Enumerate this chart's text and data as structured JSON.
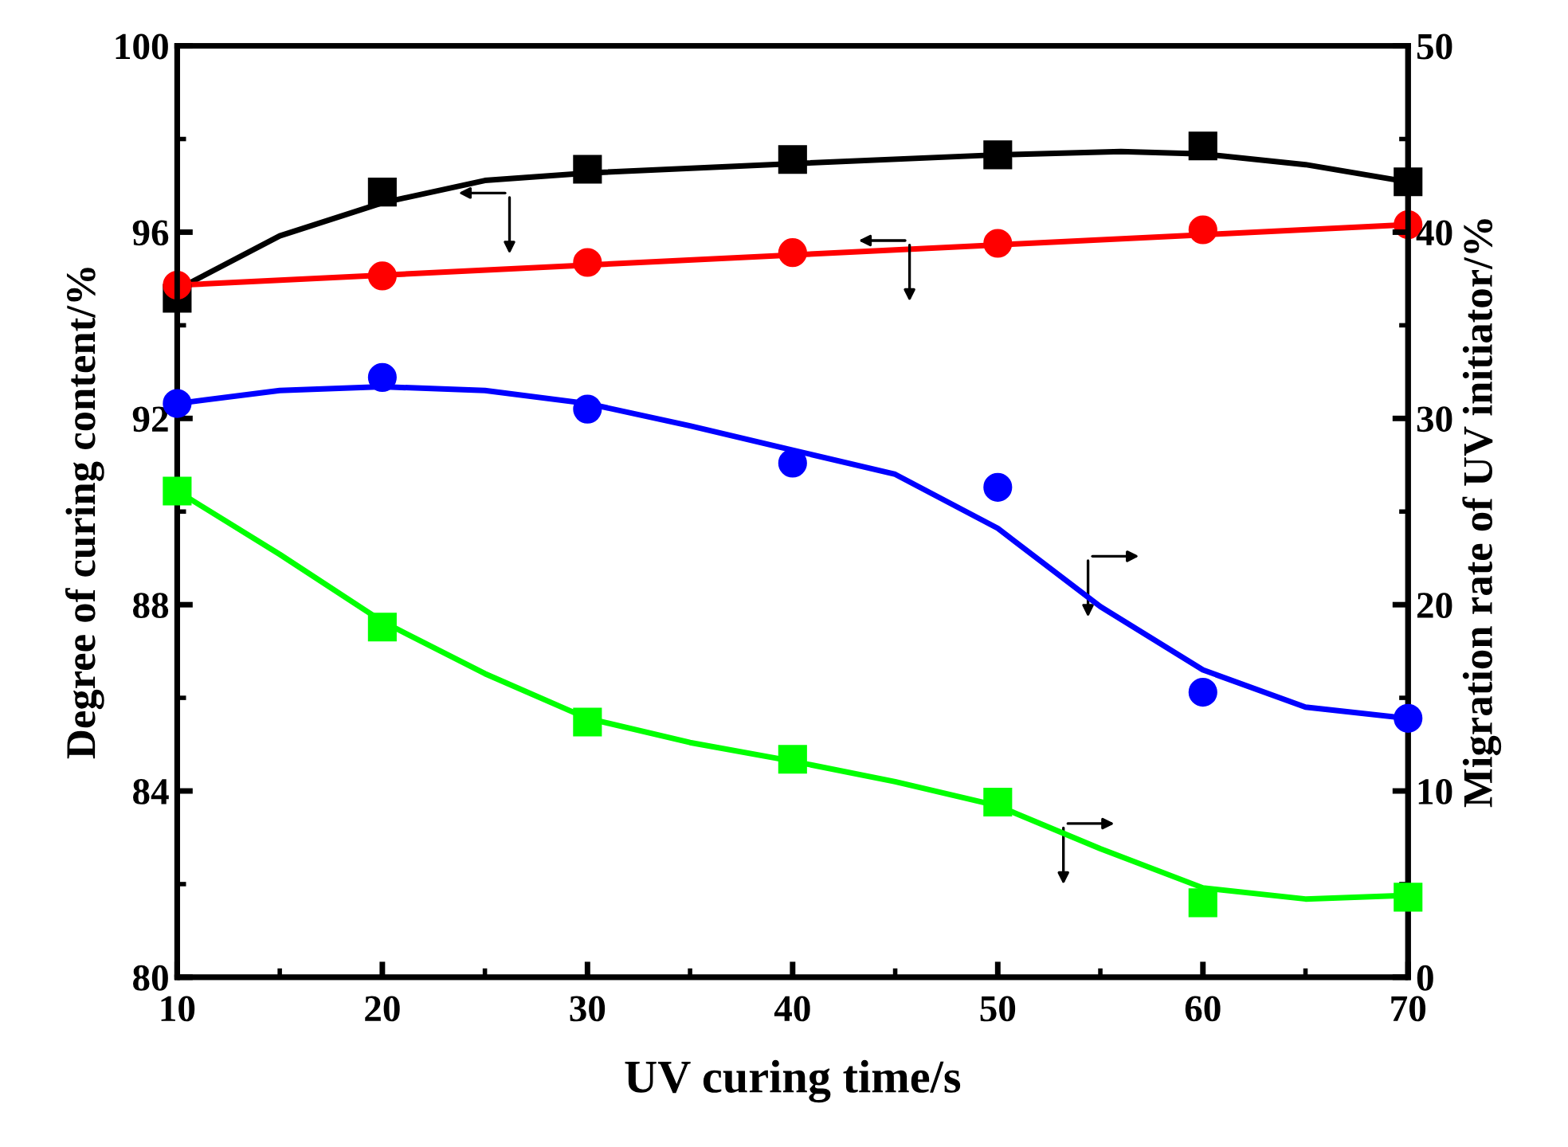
{
  "chart_data": {
    "type": "line",
    "xlabel": "UV curing time/s",
    "ylabel": "Degree of curing content/%",
    "y2label": "Migration rate of UV initiator/%",
    "x": [
      10,
      20,
      30,
      40,
      50,
      60,
      70
    ],
    "series": [
      {
        "type": "scatter",
        "color": "#000000",
        "marker": "square",
        "values": [
          94.58,
          96.86,
          97.35,
          97.56,
          97.66,
          97.85,
          97.08
        ]
      },
      {
        "type": "scatter",
        "color": "#ff0000",
        "marker": "circle",
        "values": [
          94.86,
          95.06,
          95.35,
          95.56,
          95.76,
          96.05,
          96.16
        ]
      },
      {
        "type": "scatter",
        "color": "#0000ff",
        "marker": "circle",
        "axis": "y2",
        "values": [
          30.8,
          32.2,
          30.5,
          27.6,
          26.3,
          15.3,
          13.9
        ]
      },
      {
        "type": "scatter",
        "color": "#00ff00",
        "marker": "square",
        "axis": "y2",
        "values": [
          26.1,
          18.8,
          13.7,
          11.7,
          9.4,
          4.0,
          4.3
        ]
      },
      {
        "color": "#000000",
        "x": [
          10,
          15,
          20,
          25,
          30,
          40,
          50,
          56,
          60,
          65,
          70
        ],
        "values": [
          94.77,
          95.92,
          96.63,
          97.11,
          97.27,
          97.47,
          97.66,
          97.73,
          97.68,
          97.45,
          97.08
        ]
      },
      {
        "color": "#ff0000",
        "x": [
          10,
          70
        ],
        "values": [
          94.86,
          96.16
        ]
      },
      {
        "color": "#0000ff",
        "axis": "y2",
        "x": [
          10,
          15,
          20,
          25,
          30,
          35,
          40,
          45,
          50,
          55,
          60,
          65,
          70
        ],
        "values": [
          30.8,
          31.5,
          31.7,
          31.5,
          30.8,
          29.6,
          28.3,
          27.0,
          24.1,
          19.9,
          16.5,
          14.5,
          13.9
        ]
      },
      {
        "color": "#00ff00",
        "axis": "y2",
        "x": [
          10,
          15,
          20,
          25,
          30,
          35,
          40,
          45,
          50,
          55,
          60,
          65,
          70
        ],
        "values": [
          26.1,
          22.7,
          19.1,
          16.3,
          13.9,
          12.6,
          11.6,
          10.5,
          9.2,
          6.9,
          4.8,
          4.2,
          4.4
        ]
      }
    ],
    "xlim": [
      10,
      70
    ],
    "xticks": [
      10,
      20,
      30,
      40,
      50,
      60,
      70
    ],
    "ylim": [
      80,
      100
    ],
    "yticks": [
      80,
      84,
      88,
      92,
      96,
      100
    ],
    "y2lim": [
      0,
      50
    ],
    "y2ticks": [
      0,
      10,
      20,
      30,
      40,
      50
    ],
    "grid": false,
    "legend": false,
    "line_style": "solid"
  }
}
